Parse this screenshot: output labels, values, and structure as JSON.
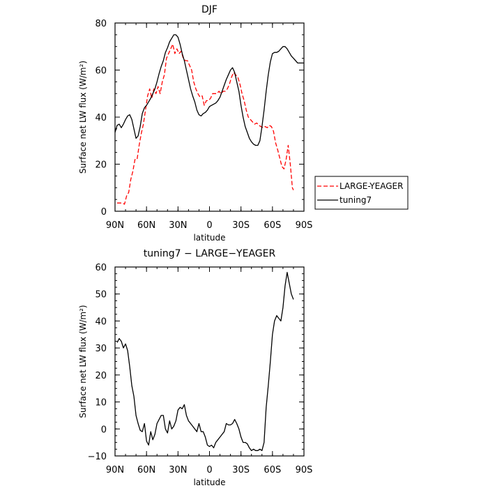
{
  "chart_data": [
    {
      "type": "line",
      "title": "DJF",
      "xlabel": "latitude",
      "ylabel": "Surface net LW flux (W/m²)",
      "xlim": [
        90,
        -90
      ],
      "ylim": [
        0,
        80
      ],
      "xticks": [
        90,
        60,
        30,
        0,
        -30,
        -60,
        -90
      ],
      "xticklabels": [
        "90N",
        "60N",
        "30N",
        "0",
        "30S",
        "60S",
        "90S"
      ],
      "yticks": [
        0,
        20,
        40,
        60,
        80
      ],
      "yticklabels": [
        "0",
        "20",
        "40",
        "60",
        "80"
      ],
      "legend": "outside-right",
      "series": [
        {
          "name": "LARGE-YEAGER",
          "color": "#ff0000",
          "dash": "dashed",
          "x": [
            88,
            85,
            83,
            81,
            79,
            77,
            75,
            73,
            71,
            69,
            67,
            65,
            63,
            61,
            59,
            57,
            55,
            53,
            51,
            49,
            47,
            45,
            43,
            41,
            39,
            37,
            35,
            33,
            31,
            29,
            27,
            25,
            23,
            21,
            19,
            17,
            15,
            13,
            11,
            9,
            7,
            5,
            3,
            1,
            -1,
            -3,
            -5,
            -7,
            -9,
            -11,
            -13,
            -15,
            -17,
            -19,
            -21,
            -23,
            -25,
            -27,
            -29,
            -31,
            -33,
            -35,
            -37,
            -39,
            -41,
            -43,
            -45,
            -47,
            -49,
            -51,
            -53,
            -55,
            -57,
            -59,
            -61,
            -63,
            -65,
            -67,
            -69,
            -71,
            -73,
            -75,
            -77,
            -79,
            -80
          ],
          "y": [
            3.5,
            3.5,
            3.5,
            3,
            6.5,
            8,
            13.5,
            17,
            22,
            22,
            28,
            33,
            37,
            43,
            49,
            52,
            48,
            52,
            50,
            53,
            50,
            55,
            58,
            65,
            67,
            69,
            71,
            67,
            69,
            67,
            68,
            65,
            64,
            64,
            62,
            60,
            55,
            52,
            50,
            48.5,
            49,
            45,
            47,
            47,
            48,
            50,
            50,
            50,
            51,
            50,
            51,
            51,
            52,
            54,
            57,
            59,
            58,
            57,
            54,
            50,
            47,
            43,
            40,
            39,
            38,
            37,
            37.5,
            36.5,
            36,
            35.5,
            36,
            35.5,
            36.5,
            36,
            34,
            29,
            26,
            22.5,
            19,
            18,
            22,
            28,
            20,
            10,
            9
          ]
        },
        {
          "name": "tuning7",
          "color": "#000000",
          "dash": "solid",
          "x": [
            90,
            88,
            86,
            84,
            82,
            80,
            78,
            76,
            74,
            72,
            70,
            68,
            66,
            64,
            62,
            60,
            58,
            56,
            54,
            52,
            50,
            48,
            46,
            44,
            42,
            40,
            38,
            36,
            34,
            32,
            30,
            28,
            26,
            24,
            22,
            20,
            18,
            16,
            14,
            12,
            10,
            8,
            6,
            4,
            2,
            0,
            -2,
            -4,
            -6,
            -8,
            -10,
            -12,
            -14,
            -16,
            -18,
            -20,
            -22,
            -24,
            -26,
            -28,
            -30,
            -32,
            -34,
            -36,
            -38,
            -40,
            -42,
            -44,
            -46,
            -48,
            -50,
            -52,
            -54,
            -56,
            -58,
            -60,
            -62,
            -64,
            -66,
            -68,
            -70,
            -72,
            -74,
            -76,
            -78,
            -80,
            -82,
            -84,
            -86,
            -88,
            -90
          ],
          "y": [
            33.5,
            36.5,
            37,
            35.5,
            37,
            39,
            40.5,
            41,
            39,
            35,
            31,
            32,
            36,
            41.5,
            44,
            45,
            46.5,
            48,
            50,
            52,
            55,
            58.5,
            61.5,
            64,
            67.5,
            69.5,
            72,
            73.5,
            75,
            75,
            74,
            71,
            67,
            64,
            60,
            56,
            52,
            49,
            46.5,
            43,
            41,
            40.5,
            41.5,
            42,
            43,
            44.5,
            45,
            45.5,
            46,
            47,
            48.5,
            51,
            53.5,
            56,
            58,
            60,
            61,
            59,
            55,
            51,
            45,
            40,
            36,
            33.5,
            31,
            29.5,
            28.5,
            28,
            28,
            30,
            36,
            43,
            51,
            58,
            63.5,
            67,
            67.5,
            67.5,
            68,
            69,
            70,
            70,
            69,
            67.5,
            66,
            65,
            64,
            63,
            63,
            63,
            63
          ]
        }
      ]
    },
    {
      "type": "line",
      "title": "tuning7 − LARGE−YEAGER",
      "xlabel": "latitude",
      "ylabel": "Surface net LW flux (W/m²)",
      "xlim": [
        90,
        -90
      ],
      "ylim": [
        -10,
        60
      ],
      "xticks": [
        90,
        60,
        30,
        0,
        -30,
        -60,
        -90
      ],
      "xticklabels": [
        "90N",
        "60N",
        "30N",
        "0",
        "30S",
        "60S",
        "90S"
      ],
      "yticks": [
        -10,
        0,
        10,
        20,
        30,
        40,
        50,
        60
      ],
      "yticklabels": [
        "−10",
        "0",
        "10",
        "20",
        "30",
        "40",
        "50",
        "60"
      ],
      "series": [
        {
          "color": "#000000",
          "dash": "solid",
          "x": [
            88,
            86,
            84,
            82,
            80,
            78,
            76,
            74,
            72,
            70,
            68,
            66,
            64,
            62,
            60,
            58,
            56,
            54,
            52,
            50,
            48,
            46,
            44,
            42,
            40,
            38,
            36,
            34,
            32,
            30,
            28,
            26,
            24,
            22,
            20,
            18,
            16,
            14,
            12,
            10,
            8,
            6,
            4,
            2,
            0,
            -2,
            -4,
            -6,
            -8,
            -10,
            -12,
            -14,
            -16,
            -18,
            -20,
            -22,
            -24,
            -26,
            -28,
            -30,
            -32,
            -34,
            -36,
            -38,
            -40,
            -42,
            -44,
            -46,
            -48,
            -50,
            -52,
            -54,
            -56,
            -58,
            -60,
            -62,
            -64,
            -66,
            -68,
            -70,
            -72,
            -74,
            -76,
            -78,
            -80
          ],
          "y": [
            32,
            33.5,
            32.5,
            30,
            31.5,
            29,
            23,
            16,
            12,
            5,
            2,
            -0.5,
            -1,
            2,
            -4.5,
            -6,
            -1,
            -4,
            -2,
            2,
            3.5,
            5,
            5,
            0,
            -1.5,
            3,
            0,
            1,
            3,
            7,
            8,
            7.5,
            9,
            5,
            3,
            2,
            1,
            0,
            -1,
            2,
            -1,
            -1,
            -3,
            -6,
            -6.5,
            -6,
            -7,
            -5,
            -4,
            -3,
            -2,
            -1,
            2,
            1.5,
            1.5,
            2,
            3.5,
            2,
            0,
            -3,
            -5,
            -5,
            -5.5,
            -7,
            -8,
            -7.5,
            -8,
            -8,
            -7.5,
            -8,
            -5,
            8,
            16,
            25,
            35,
            40,
            42,
            41,
            40,
            45,
            53,
            58,
            54,
            50,
            48
          ]
        }
      ]
    }
  ]
}
